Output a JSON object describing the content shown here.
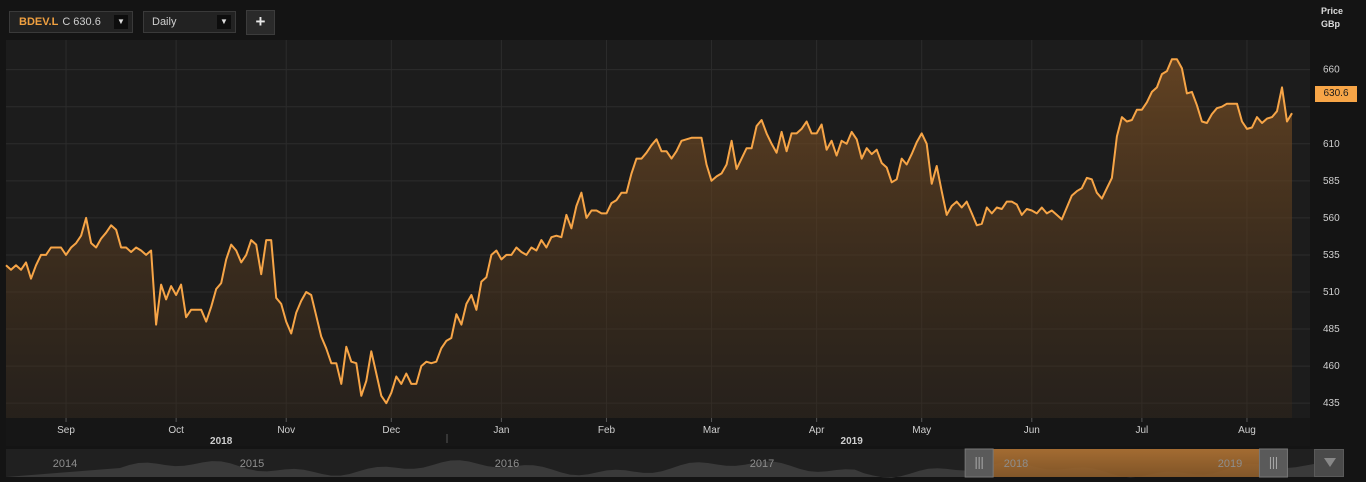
{
  "toolbar": {
    "symbol": "BDEV.L",
    "close_prefix": "C",
    "close_value": "630.6",
    "period": "Daily",
    "add_label": "+"
  },
  "price_axis": {
    "title_line1": "Price",
    "title_line2": "GBp"
  },
  "last_price_tag": "630.6",
  "colors": {
    "line": "#f7a547",
    "background": "#1c1c1c",
    "grid": "#2c2c2c",
    "navigator_selection": "#a66a2c"
  },
  "chart_data": {
    "type": "area",
    "title": "",
    "xlabel": "",
    "ylabel": "Price GBp",
    "ylim": [
      425,
      680
    ],
    "yticks": [
      435,
      460,
      485,
      510,
      535,
      560,
      585,
      610,
      635,
      660
    ],
    "ytick_labels": [
      "435",
      "460",
      "485",
      "510",
      "535",
      "560",
      "585",
      "610",
      "",
      "660"
    ],
    "grid": true,
    "legend": "none",
    "months": [
      {
        "label": "Sep",
        "x": 12
      },
      {
        "label": "Oct",
        "x": 34
      },
      {
        "label": "Nov",
        "x": 56
      },
      {
        "label": "Dec",
        "x": 77
      },
      {
        "label": "Jan",
        "x": 99
      },
      {
        "label": "Feb",
        "x": 120
      },
      {
        "label": "Mar",
        "x": 141
      },
      {
        "label": "Apr",
        "x": 162
      },
      {
        "label": "May",
        "x": 183
      },
      {
        "label": "Jun",
        "x": 205
      },
      {
        "label": "Jul",
        "x": 227
      },
      {
        "label": "Aug",
        "x": 248
      }
    ],
    "years": [
      {
        "label": "2018",
        "x": 43
      },
      {
        "label": "2019",
        "x": 169
      }
    ],
    "series": [
      {
        "values": [
          [
            0,
            528
          ],
          [
            1,
            525
          ],
          [
            2,
            528
          ],
          [
            3,
            525
          ],
          [
            4,
            530
          ],
          [
            5,
            519
          ],
          [
            6,
            528
          ],
          [
            7,
            535
          ],
          [
            8,
            535
          ],
          [
            9,
            540
          ],
          [
            10,
            540
          ],
          [
            11,
            540
          ],
          [
            12,
            535
          ],
          [
            13,
            540
          ],
          [
            14,
            543
          ],
          [
            15,
            548
          ],
          [
            16,
            560
          ],
          [
            17,
            543
          ],
          [
            18,
            540
          ],
          [
            19,
            546
          ],
          [
            20,
            550
          ],
          [
            21,
            555
          ],
          [
            22,
            552
          ],
          [
            23,
            540
          ],
          [
            24,
            540
          ],
          [
            25,
            537
          ],
          [
            26,
            540
          ],
          [
            27,
            538
          ],
          [
            28,
            535
          ],
          [
            29,
            538
          ],
          [
            30,
            488
          ],
          [
            31,
            515
          ],
          [
            32,
            505
          ],
          [
            33,
            514
          ],
          [
            34,
            508
          ],
          [
            35,
            515
          ],
          [
            36,
            493
          ],
          [
            37,
            498
          ],
          [
            38,
            498
          ],
          [
            39,
            498
          ],
          [
            40,
            490
          ],
          [
            41,
            500
          ],
          [
            42,
            512
          ],
          [
            43,
            516
          ],
          [
            44,
            532
          ],
          [
            45,
            542
          ],
          [
            46,
            538
          ],
          [
            47,
            530
          ],
          [
            48,
            535
          ],
          [
            49,
            545
          ],
          [
            50,
            542
          ],
          [
            51,
            522
          ],
          [
            52,
            545
          ],
          [
            53,
            545
          ],
          [
            54,
            506
          ],
          [
            55,
            502
          ],
          [
            56,
            490
          ],
          [
            57,
            482
          ],
          [
            58,
            496
          ],
          [
            59,
            504
          ],
          [
            60,
            510
          ],
          [
            61,
            508
          ],
          [
            62,
            494
          ],
          [
            63,
            480
          ],
          [
            64,
            472
          ],
          [
            65,
            462
          ],
          [
            66,
            462
          ],
          [
            67,
            448
          ],
          [
            68,
            473
          ],
          [
            69,
            463
          ],
          [
            70,
            462
          ],
          [
            71,
            440
          ],
          [
            72,
            450
          ],
          [
            73,
            470
          ],
          [
            74,
            455
          ],
          [
            75,
            440
          ],
          [
            76,
            435
          ],
          [
            77,
            442
          ],
          [
            78,
            453
          ],
          [
            79,
            448
          ],
          [
            80,
            455
          ],
          [
            81,
            448
          ],
          [
            82,
            448
          ],
          [
            83,
            460
          ],
          [
            84,
            463
          ],
          [
            85,
            462
          ],
          [
            86,
            463
          ],
          [
            87,
            472
          ],
          [
            88,
            477
          ],
          [
            89,
            479
          ],
          [
            90,
            495
          ],
          [
            91,
            488
          ],
          [
            92,
            502
          ],
          [
            93,
            508
          ],
          [
            94,
            498
          ],
          [
            95,
            517
          ],
          [
            96,
            520
          ],
          [
            97,
            535
          ],
          [
            98,
            538
          ],
          [
            99,
            532
          ],
          [
            100,
            535
          ],
          [
            101,
            535
          ],
          [
            102,
            540
          ],
          [
            103,
            537
          ],
          [
            104,
            535
          ],
          [
            105,
            540
          ],
          [
            106,
            538
          ],
          [
            107,
            545
          ],
          [
            108,
            540
          ],
          [
            109,
            547
          ],
          [
            110,
            548
          ],
          [
            111,
            547
          ],
          [
            112,
            562
          ],
          [
            113,
            553
          ],
          [
            114,
            568
          ],
          [
            115,
            577
          ],
          [
            116,
            560
          ],
          [
            117,
            565
          ],
          [
            118,
            565
          ],
          [
            119,
            563
          ],
          [
            120,
            563
          ],
          [
            121,
            570
          ],
          [
            122,
            572
          ],
          [
            123,
            577
          ],
          [
            124,
            577
          ],
          [
            125,
            590
          ],
          [
            126,
            600
          ],
          [
            127,
            600
          ],
          [
            128,
            604
          ],
          [
            129,
            609
          ],
          [
            130,
            613
          ],
          [
            131,
            605
          ],
          [
            132,
            605
          ],
          [
            133,
            600
          ],
          [
            134,
            605
          ],
          [
            135,
            612
          ],
          [
            136,
            613
          ],
          [
            137,
            614
          ],
          [
            138,
            614
          ],
          [
            139,
            614
          ],
          [
            140,
            596
          ],
          [
            141,
            585
          ],
          [
            142,
            588
          ],
          [
            143,
            590
          ],
          [
            144,
            596
          ],
          [
            145,
            612
          ],
          [
            146,
            593
          ],
          [
            147,
            600
          ],
          [
            148,
            607
          ],
          [
            149,
            607
          ],
          [
            150,
            622
          ],
          [
            151,
            626
          ],
          [
            152,
            617
          ],
          [
            153,
            610
          ],
          [
            154,
            604
          ],
          [
            155,
            618
          ],
          [
            156,
            605
          ],
          [
            157,
            617
          ],
          [
            158,
            617
          ],
          [
            159,
            620
          ],
          [
            160,
            625
          ],
          [
            161,
            617
          ],
          [
            162,
            617
          ],
          [
            163,
            623
          ],
          [
            164,
            606
          ],
          [
            165,
            612
          ],
          [
            166,
            602
          ],
          [
            167,
            612
          ],
          [
            168,
            610
          ],
          [
            169,
            618
          ],
          [
            170,
            613
          ],
          [
            171,
            600
          ],
          [
            172,
            607
          ],
          [
            173,
            603
          ],
          [
            174,
            606
          ],
          [
            175,
            597
          ],
          [
            176,
            594
          ],
          [
            177,
            584
          ],
          [
            178,
            586
          ],
          [
            179,
            600
          ],
          [
            180,
            596
          ],
          [
            181,
            603
          ],
          [
            182,
            611
          ],
          [
            183,
            617
          ],
          [
            184,
            610
          ],
          [
            185,
            583
          ],
          [
            186,
            595
          ],
          [
            187,
            578
          ],
          [
            188,
            562
          ],
          [
            189,
            568
          ],
          [
            190,
            571
          ],
          [
            191,
            567
          ],
          [
            192,
            571
          ],
          [
            193,
            563
          ],
          [
            194,
            555
          ],
          [
            195,
            556
          ],
          [
            196,
            567
          ],
          [
            197,
            563
          ],
          [
            198,
            567
          ],
          [
            199,
            566
          ],
          [
            200,
            571
          ],
          [
            201,
            571
          ],
          [
            202,
            569
          ],
          [
            203,
            562
          ],
          [
            204,
            566
          ],
          [
            205,
            565
          ],
          [
            206,
            563
          ],
          [
            207,
            567
          ],
          [
            208,
            563
          ],
          [
            209,
            565
          ],
          [
            210,
            562
          ],
          [
            211,
            559
          ],
          [
            212,
            567
          ],
          [
            213,
            575
          ],
          [
            214,
            578
          ],
          [
            215,
            580
          ],
          [
            216,
            587
          ],
          [
            217,
            586
          ],
          [
            218,
            577
          ],
          [
            219,
            573
          ],
          [
            220,
            580
          ],
          [
            221,
            587
          ],
          [
            222,
            615
          ],
          [
            223,
            628
          ],
          [
            224,
            625
          ],
          [
            225,
            626
          ],
          [
            226,
            633
          ],
          [
            227,
            633
          ],
          [
            228,
            638
          ],
          [
            229,
            645
          ],
          [
            230,
            648
          ],
          [
            231,
            657
          ],
          [
            232,
            659
          ],
          [
            233,
            667
          ],
          [
            234,
            667
          ],
          [
            235,
            661
          ],
          [
            236,
            644
          ],
          [
            237,
            645
          ],
          [
            238,
            636
          ],
          [
            239,
            625
          ],
          [
            240,
            624
          ],
          [
            241,
            630
          ],
          [
            242,
            634
          ],
          [
            243,
            635
          ],
          [
            244,
            637
          ],
          [
            245,
            637
          ],
          [
            246,
            637
          ],
          [
            247,
            625
          ],
          [
            248,
            620
          ],
          [
            249,
            621
          ],
          [
            250,
            628
          ],
          [
            251,
            624
          ],
          [
            252,
            627
          ],
          [
            253,
            628
          ],
          [
            254,
            632
          ],
          [
            255,
            648
          ],
          [
            256,
            625
          ],
          [
            257,
            630.6
          ]
        ]
      }
    ]
  },
  "navigator": {
    "years": [
      "2014",
      "2015",
      "2016",
      "2017",
      "2018",
      "2019"
    ],
    "selection": [
      0.744,
      0.969
    ]
  }
}
